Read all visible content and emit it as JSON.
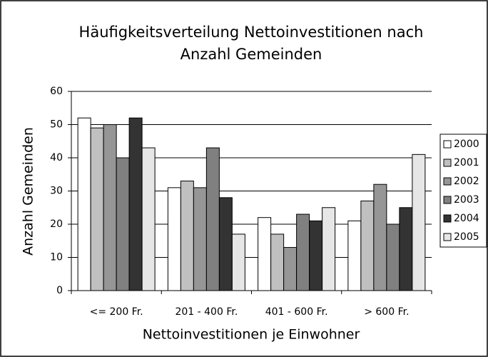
{
  "chart_data": {
    "type": "bar",
    "title": "Häufigkeitsverteilung Nettoinvestitionen nach Anzahl Gemeinden",
    "x_label": "Nettoinvestitionen je Einwohner",
    "y_label": "Anzahl Gemeinden",
    "categories": [
      "<= 200 Fr.",
      "201 - 400 Fr.",
      "401 - 600 Fr.",
      "> 600 Fr."
    ],
    "series": [
      {
        "name": "2000",
        "color": "#ffffff",
        "values": [
          52,
          31,
          22,
          21
        ]
      },
      {
        "name": "2001",
        "color": "#c0c0c0",
        "values": [
          49,
          33,
          17,
          27
        ]
      },
      {
        "name": "2002",
        "color": "#969696",
        "values": [
          50,
          31,
          13,
          32
        ]
      },
      {
        "name": "2003",
        "color": "#808080",
        "values": [
          40,
          43,
          23,
          20
        ]
      },
      {
        "name": "2004",
        "color": "#333333",
        "values": [
          52,
          28,
          21,
          25
        ]
      },
      {
        "name": "2005",
        "color": "#e6e6e6",
        "values": [
          43,
          17,
          25,
          41
        ]
      }
    ],
    "ylim": [
      0,
      60
    ],
    "yticks": [
      0,
      10,
      20,
      30,
      40,
      50,
      60
    ],
    "grid": true,
    "legend": "right"
  }
}
